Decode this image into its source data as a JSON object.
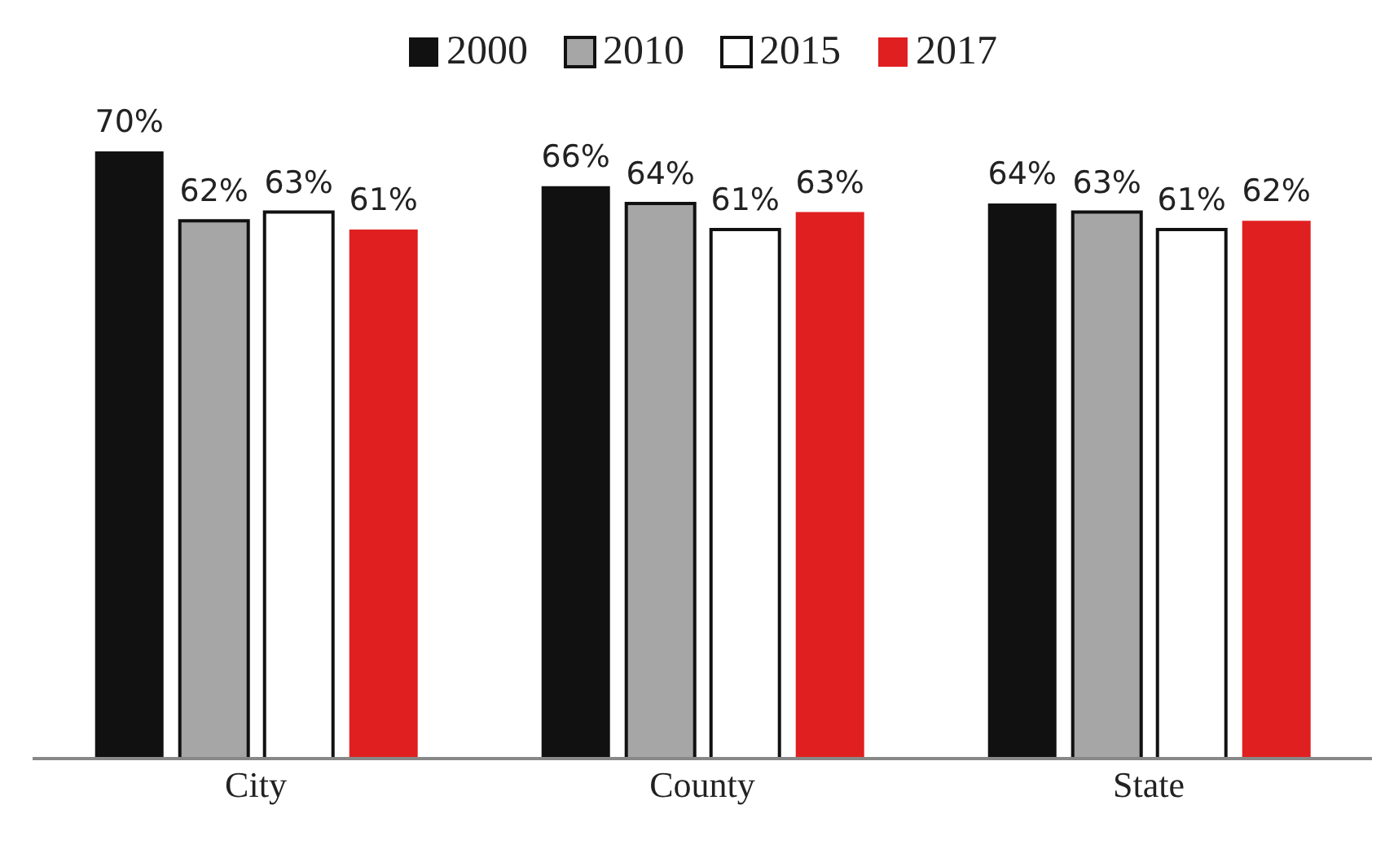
{
  "chart_data": {
    "type": "bar",
    "categories": [
      "City",
      "County",
      "State"
    ],
    "series": [
      {
        "name": "2000",
        "color": "#111111",
        "values": [
          70,
          66,
          64
        ],
        "value_labels": [
          "70%",
          "66%",
          "64%"
        ]
      },
      {
        "name": "2010",
        "color": "#a6a6a6",
        "values": [
          62,
          64,
          63
        ],
        "value_labels": [
          "62%",
          "64%",
          "63%"
        ]
      },
      {
        "name": "2015",
        "color": "#ffffff",
        "values": [
          63,
          61,
          61
        ],
        "value_labels": [
          "63%",
          "61%",
          "61%"
        ]
      },
      {
        "name": "2017",
        "color": "#e02020",
        "values": [
          61,
          63,
          62
        ],
        "value_labels": [
          "61%",
          "63%",
          "62%"
        ]
      }
    ],
    "tick_labels": "x",
    "legend": "top",
    "grid": false
  }
}
